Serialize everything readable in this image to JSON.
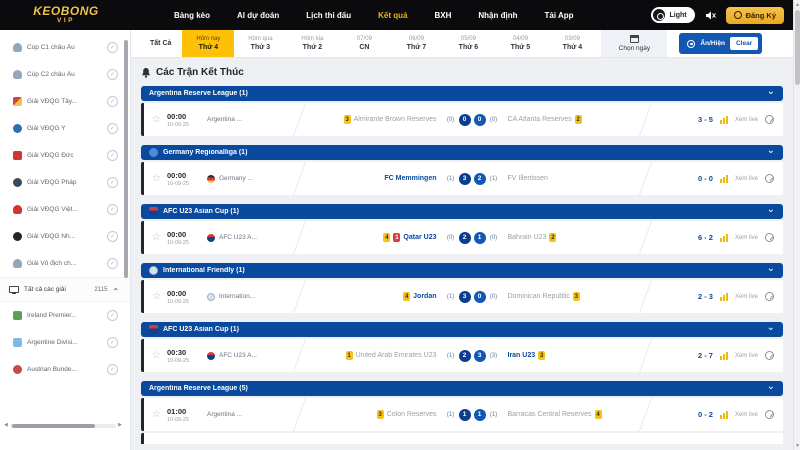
{
  "colors": {
    "accent_yellow": "#f0b90b",
    "active_tab_yellow": "#ffc107",
    "primary_blue": "#0a4a9e",
    "control_blue": "#1258b3",
    "badge_yellow": "#f3c21c",
    "badge_red": "#e23b3b"
  },
  "header": {
    "logo_line1": "KEOBONG",
    "logo_line2": "VIP",
    "nav": [
      {
        "label": "Bảng kèo",
        "active": false
      },
      {
        "label": "AI dự đoán",
        "active": false
      },
      {
        "label": "Lịch thi đấu",
        "active": false
      },
      {
        "label": "Kết quả",
        "active": true
      },
      {
        "label": "BXH",
        "active": false
      },
      {
        "label": "Nhận định",
        "active": false
      },
      {
        "label": "Tải App",
        "active": false
      }
    ],
    "theme_toggle_label": "Light",
    "signup_label": "Đăng Ký"
  },
  "date_bar": {
    "all_label": "Tất Cả",
    "tabs": [
      {
        "top": "Hôm nay",
        "bottom": "Thứ 4",
        "active": true
      },
      {
        "top": "Hôm qua",
        "bottom": "Thứ 3",
        "active": false
      },
      {
        "top": "Hôm kia",
        "bottom": "Thứ 2",
        "active": false
      },
      {
        "top": "07/09",
        "bottom": "CN",
        "active": false
      },
      {
        "top": "06/09",
        "bottom": "Thứ 7",
        "active": false
      },
      {
        "top": "05/09",
        "bottom": "Thứ 6",
        "active": false
      },
      {
        "top": "04/09",
        "bottom": "Thứ 5",
        "active": false
      },
      {
        "top": "03/09",
        "bottom": "Thứ 4",
        "active": false
      }
    ],
    "choose_date_label": "Chọn ngày",
    "toggle_label": "Ẩn/Hiện",
    "clear_label": "Clear"
  },
  "sidebar": {
    "items": [
      {
        "label": "Cúp C1 châu Âu",
        "icon": "c1-trophy-icon"
      },
      {
        "label": "Cúp C2 châu Âu",
        "icon": "c2-trophy-icon"
      },
      {
        "label": "Giải VĐQG Tây...",
        "icon": "spain-league-icon"
      },
      {
        "label": "Giải VĐQG Ý",
        "icon": "italy-league-icon"
      },
      {
        "label": "Giải VĐQG Đức",
        "icon": "germany-league-icon"
      },
      {
        "label": "Giải VĐQG Pháp",
        "icon": "france-league-icon"
      },
      {
        "label": "Giải VĐQG Việt...",
        "icon": "vietnam-league-icon"
      },
      {
        "label": "Giải VĐQG Nh...",
        "icon": "japan-league-icon"
      },
      {
        "label": "Giải Vô địch ch...",
        "icon": "world-cup-icon"
      }
    ],
    "all_leagues_label": "Tất cả các giải",
    "all_leagues_count": "2115",
    "more_items": [
      {
        "label": "Ireland Premier...",
        "icon": "ireland-crest-icon"
      },
      {
        "label": "Argentine Divisi...",
        "icon": "argentina-crest-icon"
      },
      {
        "label": "Austrian Bunde...",
        "icon": "austria-crest-icon"
      }
    ]
  },
  "main": {
    "title": "Các Trận Kết Thúc",
    "live_label": "Xem live",
    "sections": [
      {
        "league": "Argentina Reserve League (1)",
        "icon": "none",
        "matches": [
          {
            "time": "00:00",
            "date": "10-09-25",
            "comp": "Argentina ...",
            "comp_icon": "none",
            "home_yellow": "3",
            "home_red": "",
            "home": "Almirante Brown Reserves",
            "home_strong": false,
            "p1": "(0)",
            "s1": "0",
            "s2": "0",
            "p2": "(0)",
            "away": "CA Atlanta Reserves",
            "away_yellow": "2",
            "away_strong": false,
            "score": "3 - 5"
          }
        ]
      },
      {
        "league": "Germany Regionalliga (1)",
        "icon": "germany-circle-icon",
        "matches": [
          {
            "time": "00:00",
            "date": "10-09-25",
            "comp": "Germany ...",
            "comp_icon": "germany-flag-icon",
            "home_yellow": "",
            "home_red": "",
            "home": "FC Memmingen",
            "home_strong": true,
            "p1": "(1)",
            "s1": "3",
            "s2": "2",
            "p2": "(1)",
            "away": "FV Illertissen",
            "away_yellow": "",
            "away_strong": false,
            "score": "0 - 0"
          }
        ]
      },
      {
        "league": "AFC U23 Asian Cup (1)",
        "icon": "afc-badge-icon",
        "matches": [
          {
            "time": "00:00",
            "date": "10-09-25",
            "comp": "AFC U23 A...",
            "comp_icon": "afc-badge-icon",
            "home_yellow": "4",
            "home_red": "1",
            "home": "Qatar U23",
            "home_strong": true,
            "p1": "(0)",
            "s1": "2",
            "s2": "1",
            "p2": "(0)",
            "away": "Bahrain U23",
            "away_yellow": "2",
            "away_strong": false,
            "score": "6 - 2"
          }
        ]
      },
      {
        "league": "International Friendly (1)",
        "icon": "globe-icon",
        "matches": [
          {
            "time": "00:00",
            "date": "10-09-25",
            "comp": "Internation...",
            "comp_icon": "globe-icon",
            "home_yellow": "4",
            "home_red": "",
            "home": "Jordan",
            "home_strong": true,
            "p1": "(1)",
            "s1": "3",
            "s2": "0",
            "p2": "(0)",
            "away": "Dominican Republic",
            "away_yellow": "3",
            "away_strong": false,
            "score": "2 - 3"
          }
        ]
      },
      {
        "league": "AFC U23 Asian Cup (1)",
        "icon": "afc-badge-icon",
        "matches": [
          {
            "time": "00:30",
            "date": "10-09-25",
            "comp": "AFC U23 A...",
            "comp_icon": "afc-badge-icon",
            "home_yellow": "1",
            "home_red": "",
            "home": "United Arab Emirates U23",
            "home_strong": false,
            "p1": "(1)",
            "s1": "2",
            "s2": "3",
            "p2": "(3)",
            "away": "Iran U23",
            "away_yellow": "3",
            "away_strong": true,
            "score": "2 - 7"
          }
        ]
      },
      {
        "league": "Argentina Reserve League (5)",
        "icon": "none",
        "partial_rows": 1,
        "matches": [
          {
            "time": "01:00",
            "date": "10-09-25",
            "comp": "Argentina ...",
            "comp_icon": "none",
            "home_yellow": "3",
            "home_red": "",
            "home": "Colon Reserves",
            "home_strong": false,
            "p1": "(1)",
            "s1": "1",
            "s2": "1",
            "p2": "(1)",
            "away": "Barracas Central Reserves",
            "away_yellow": "4",
            "away_strong": false,
            "score": "0 - 2"
          }
        ]
      }
    ]
  }
}
